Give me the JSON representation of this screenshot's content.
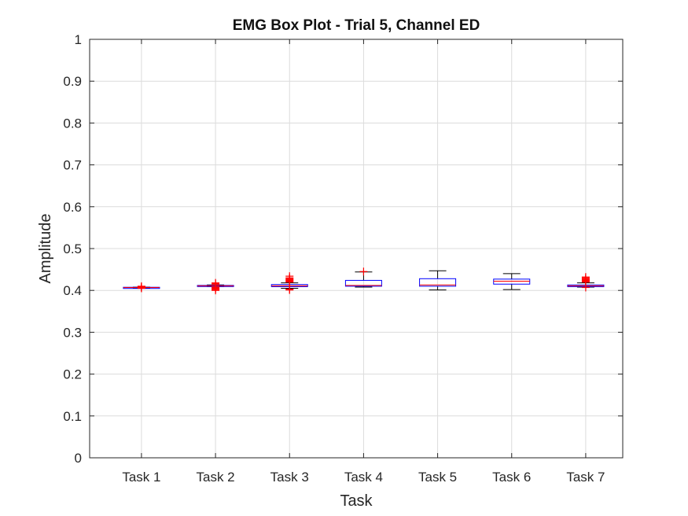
{
  "chart_data": {
    "type": "box",
    "title": "EMG Box Plot - Trial 5, Channel ED",
    "xlabel": "Task",
    "ylabel": "Amplitude",
    "ylim": [
      0,
      1
    ],
    "yticks": [
      "0",
      "0.1",
      "0.2",
      "0.3",
      "0.4",
      "0.5",
      "0.6",
      "0.7",
      "0.8",
      "0.9",
      "1"
    ],
    "grid": true,
    "categories": [
      "Task 1",
      "Task 2",
      "Task 3",
      "Task 4",
      "Task 5",
      "Task 6",
      "Task 7"
    ],
    "boxes": [
      {
        "whisker_low": 0.406,
        "q1": 0.4065,
        "median": 0.407,
        "q3": 0.4075,
        "whisker_high": 0.408,
        "outliers": [
          0.405,
          0.406,
          0.407,
          0.408,
          0.409,
          0.41
        ]
      },
      {
        "whisker_low": 0.409,
        "q1": 0.41,
        "median": 0.411,
        "q3": 0.412,
        "whisker_high": 0.413,
        "outliers": [
          0.4,
          0.402,
          0.404,
          0.406,
          0.408,
          0.414,
          0.416,
          0.418
        ]
      },
      {
        "whisker_low": 0.405,
        "q1": 0.409,
        "median": 0.411,
        "q3": 0.414,
        "whisker_high": 0.418,
        "outliers": [
          0.401,
          0.403,
          0.42,
          0.422,
          0.424,
          0.426,
          0.428,
          0.43,
          0.434
        ]
      },
      {
        "whisker_low": 0.408,
        "q1": 0.41,
        "median": 0.412,
        "q3": 0.424,
        "whisker_high": 0.444,
        "outliers": [
          0.445
        ]
      },
      {
        "whisker_low": 0.401,
        "q1": 0.41,
        "median": 0.413,
        "q3": 0.428,
        "whisker_high": 0.447,
        "outliers": []
      },
      {
        "whisker_low": 0.402,
        "q1": 0.415,
        "median": 0.422,
        "q3": 0.427,
        "whisker_high": 0.44,
        "outliers": []
      },
      {
        "whisker_low": 0.408,
        "q1": 0.409,
        "median": 0.411,
        "q3": 0.413,
        "whisker_high": 0.418,
        "outliers": [
          0.407,
          0.42,
          0.422,
          0.424,
          0.426,
          0.428,
          0.43,
          0.432
        ]
      }
    ],
    "colors": {
      "box": "#0000ff",
      "median": "#ff0000",
      "whisker": "#000000",
      "outlier": "#ff0000",
      "grid": "#dcdcdc",
      "axis": "#262626"
    }
  }
}
